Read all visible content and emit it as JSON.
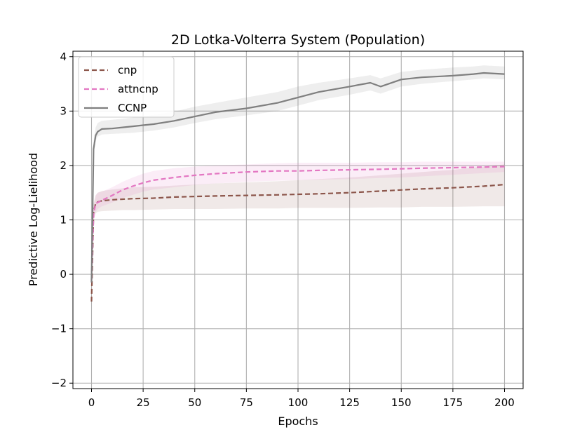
{
  "chart_data": {
    "type": "line",
    "title": "2D Lotka-Volterra System (Population)",
    "xlabel": "Epochs",
    "ylabel": "Predictive Log-Lielihood",
    "xlim": [
      -9,
      209
    ],
    "ylim": [
      -2.1,
      4.1
    ],
    "grid": true,
    "legend_position": "top-left",
    "x_ticks": [
      0,
      25,
      50,
      75,
      100,
      125,
      150,
      175,
      200
    ],
    "x_tick_labels": [
      "0",
      "25",
      "50",
      "75",
      "100",
      "125",
      "150",
      "175",
      "200"
    ],
    "y_ticks": [
      4,
      3,
      2,
      1,
      0,
      -1,
      -2
    ],
    "y_tick_labels": [
      "4",
      "3",
      "2",
      "1",
      "0",
      "−1",
      "−2"
    ],
    "series": [
      {
        "name": "cnp",
        "color": "#8c564b",
        "style": "dashed",
        "band_color": "#8c564b",
        "x": [
          0,
          1,
          2,
          3,
          5,
          10,
          15,
          20,
          30,
          40,
          50,
          60,
          75,
          90,
          100,
          110,
          125,
          140,
          150,
          160,
          175,
          190,
          200
        ],
        "values": [
          -0.5,
          1.15,
          1.3,
          1.33,
          1.35,
          1.37,
          1.38,
          1.39,
          1.4,
          1.42,
          1.43,
          1.44,
          1.45,
          1.46,
          1.47,
          1.48,
          1.5,
          1.53,
          1.55,
          1.57,
          1.59,
          1.62,
          1.65
        ],
        "lower": [
          -0.6,
          1.0,
          1.12,
          1.15,
          1.16,
          1.17,
          1.18,
          1.18,
          1.19,
          1.2,
          1.2,
          1.2,
          1.21,
          1.21,
          1.22,
          1.22,
          1.22,
          1.23,
          1.23,
          1.24,
          1.24,
          1.25,
          1.25
        ],
        "upper": [
          -0.4,
          1.3,
          1.45,
          1.5,
          1.53,
          1.56,
          1.58,
          1.6,
          1.61,
          1.63,
          1.65,
          1.67,
          1.69,
          1.71,
          1.73,
          1.75,
          1.78,
          1.82,
          1.85,
          1.88,
          1.92,
          1.98,
          2.02
        ]
      },
      {
        "name": "attncnp",
        "color": "#e377c2",
        "style": "dashed",
        "band_color": "#e377c2",
        "x": [
          0,
          1,
          2,
          3,
          5,
          10,
          15,
          20,
          25,
          30,
          40,
          50,
          60,
          75,
          90,
          100,
          110,
          125,
          140,
          150,
          160,
          175,
          190,
          200
        ],
        "values": [
          -0.1,
          1.1,
          1.3,
          1.32,
          1.36,
          1.45,
          1.55,
          1.62,
          1.68,
          1.73,
          1.78,
          1.82,
          1.85,
          1.88,
          1.9,
          1.9,
          1.91,
          1.92,
          1.93,
          1.94,
          1.95,
          1.96,
          1.97,
          1.98
        ],
        "lower": [
          -0.2,
          0.95,
          1.15,
          1.2,
          1.25,
          1.32,
          1.4,
          1.46,
          1.52,
          1.56,
          1.6,
          1.64,
          1.67,
          1.7,
          1.72,
          1.73,
          1.74,
          1.75,
          1.77,
          1.78,
          1.8,
          1.83,
          1.86,
          1.88
        ],
        "upper": [
          0.0,
          1.25,
          1.45,
          1.5,
          1.52,
          1.6,
          1.7,
          1.78,
          1.85,
          1.9,
          1.95,
          1.98,
          2.0,
          2.02,
          2.04,
          2.05,
          2.05,
          2.05,
          2.06,
          2.06,
          2.07,
          2.07,
          2.07,
          2.07
        ]
      },
      {
        "name": "CCNP",
        "color": "#7f7f7f",
        "style": "solid",
        "band_color": "#7f7f7f",
        "x": [
          0,
          1,
          2,
          3,
          5,
          10,
          15,
          20,
          25,
          30,
          40,
          50,
          60,
          75,
          90,
          100,
          110,
          125,
          135,
          140,
          150,
          160,
          175,
          185,
          190,
          200
        ],
        "values": [
          -0.15,
          2.3,
          2.55,
          2.62,
          2.67,
          2.68,
          2.7,
          2.72,
          2.74,
          2.76,
          2.82,
          2.9,
          2.98,
          3.05,
          3.15,
          3.25,
          3.35,
          3.45,
          3.52,
          3.45,
          3.58,
          3.62,
          3.65,
          3.68,
          3.7,
          3.68
        ],
        "lower": [
          -0.2,
          2.2,
          2.45,
          2.53,
          2.57,
          2.58,
          2.59,
          2.6,
          2.62,
          2.64,
          2.7,
          2.78,
          2.85,
          2.92,
          3.0,
          3.1,
          3.2,
          3.3,
          3.38,
          3.32,
          3.45,
          3.5,
          3.55,
          3.58,
          3.6,
          3.58
        ],
        "upper": [
          -0.1,
          2.45,
          2.7,
          2.78,
          2.82,
          2.84,
          2.86,
          2.88,
          2.9,
          2.93,
          2.99,
          3.08,
          3.15,
          3.25,
          3.35,
          3.45,
          3.52,
          3.6,
          3.66,
          3.6,
          3.72,
          3.76,
          3.8,
          3.82,
          3.84,
          3.82
        ]
      }
    ]
  }
}
